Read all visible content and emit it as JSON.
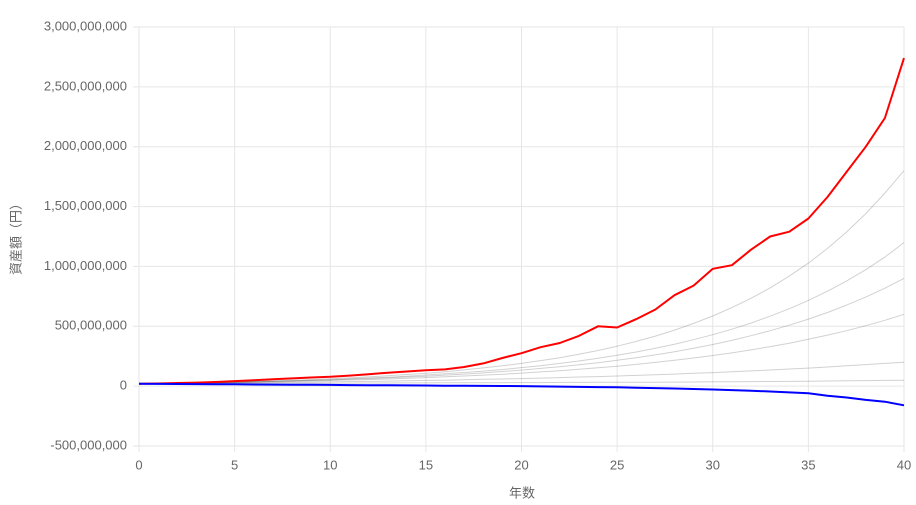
{
  "chart_data": {
    "type": "line",
    "x_label": "年数",
    "y_label": "資産額（円）",
    "x": [
      0,
      1,
      2,
      3,
      4,
      5,
      6,
      7,
      8,
      9,
      10,
      11,
      12,
      13,
      14,
      15,
      16,
      17,
      18,
      19,
      20,
      21,
      22,
      23,
      24,
      25,
      26,
      27,
      28,
      29,
      30,
      31,
      32,
      33,
      34,
      35,
      36,
      37,
      38,
      39,
      40
    ],
    "xlim": [
      0,
      40
    ],
    "xticks": [
      0,
      5,
      10,
      15,
      20,
      25,
      30,
      35,
      40
    ],
    "ylim": [
      -500000000,
      3000000000
    ],
    "yticks": [
      {
        "value": -500000000,
        "label": "-500,000,000"
      },
      0,
      {
        "value": 500000000,
        "label": "500,000,000"
      },
      {
        "value": 1000000000,
        "label": "1,000,000,000"
      },
      {
        "value": 1500000000,
        "label": "1,500,000,000"
      },
      {
        "value": 2000000000,
        "label": "2,000,000,000"
      },
      {
        "value": 2500000000,
        "label": "2,500,000,000"
      },
      {
        "value": 3000000000,
        "label": "3,000,000,000"
      }
    ],
    "grid": true,
    "series": [
      {
        "color": "rgba(0,0,0,0.18)",
        "width": 1,
        "values": [
          20000000,
          21000000,
          22000000,
          24000000,
          25000000,
          27000000,
          28000000,
          30000000,
          32000000,
          34000000,
          36000000,
          38000000,
          40000000,
          42000000,
          45000000,
          48000000,
          50000000,
          53000000,
          57000000,
          60000000,
          63000000,
          67000000,
          71000000,
          76000000,
          80000000,
          85000000,
          90000000,
          95000000,
          101000000,
          107000000,
          113000000,
          120000000,
          127000000,
          135000000,
          143000000,
          151000000,
          160000000,
          170000000,
          180000000,
          190000000,
          200000000
        ]
      },
      {
        "color": "rgba(0,0,0,0.18)",
        "width": 1,
        "values": [
          20000000,
          22000000,
          24000000,
          26000000,
          28000000,
          31000000,
          33000000,
          36000000,
          40000000,
          43000000,
          47000000,
          51000000,
          55000000,
          60000000,
          66000000,
          71000000,
          78000000,
          85000000,
          92000000,
          100000000,
          109000000,
          119000000,
          129000000,
          141000000,
          153000000,
          167000000,
          182000000,
          198000000,
          216000000,
          235000000,
          256000000,
          278000000,
          303000000,
          330000000,
          359000000,
          391000000,
          426000000,
          463000000,
          505000000,
          550000000,
          600000000
        ]
      },
      {
        "color": "rgba(0,0,0,0.18)",
        "width": 1,
        "values": [
          20000000,
          22000000,
          25000000,
          27000000,
          30000000,
          33000000,
          37000000,
          41000000,
          45000000,
          50000000,
          55000000,
          61000000,
          68000000,
          75000000,
          83000000,
          93000000,
          103000000,
          114000000,
          126000000,
          139000000,
          155000000,
          171000000,
          190000000,
          210000000,
          233000000,
          258000000,
          285000000,
          316000000,
          350000000,
          388000000,
          430000000,
          476000000,
          527000000,
          584000000,
          647000000,
          716000000,
          793000000,
          879000000,
          973000000,
          1078000000,
          1200000000
        ]
      },
      {
        "color": "rgba(0,0,0,0.18)",
        "width": 1,
        "values": [
          20000000,
          22000000,
          25000000,
          28000000,
          31000000,
          35000000,
          39000000,
          44000000,
          49000000,
          55000000,
          62000000,
          69000000,
          77000000,
          86000000,
          97000000,
          108000000,
          121000000,
          136000000,
          152000000,
          170000000,
          190000000,
          213000000,
          238000000,
          267000000,
          298000000,
          334000000,
          374000000,
          418000000,
          468000000,
          524000000,
          586000000,
          656000000,
          734000000,
          821000000,
          919000000,
          1028000000,
          1151000000,
          1288000000,
          1441000000,
          1613000000,
          1800000000
        ]
      },
      {
        "color": "rgba(0,0,0,0.18)",
        "width": 1,
        "values": [
          20000000,
          20000000,
          21000000,
          21000000,
          22000000,
          22000000,
          23000000,
          23000000,
          24000000,
          24000000,
          25000000,
          25000000,
          26000000,
          26000000,
          27000000,
          27000000,
          28000000,
          28000000,
          29000000,
          29000000,
          30000000,
          30000000,
          31000000,
          31000000,
          32000000,
          32000000,
          33000000,
          33000000,
          34000000,
          35000000,
          36000000,
          37000000,
          38000000,
          39000000,
          40000000,
          41000000,
          43000000,
          45000000,
          46000000,
          48000000,
          50000000
        ]
      },
      {
        "color": "rgba(0,0,0,0.18)",
        "width": 1,
        "values": [
          20000000,
          22000000,
          24000000,
          27000000,
          29000000,
          32000000,
          35000000,
          39000000,
          43000000,
          47000000,
          52000000,
          57000000,
          63000000,
          69000000,
          76000000,
          83000000,
          92000000,
          101000000,
          111000000,
          122000000,
          134000000,
          148000000,
          162000000,
          179000000,
          196000000,
          216000000,
          238000000,
          261000000,
          287000000,
          316000000,
          348000000,
          382000000,
          421000000,
          463000000,
          509000000,
          560000000,
          615000000,
          677000000,
          744000000,
          818000000,
          900000000
        ]
      },
      {
        "color": "#ff0000",
        "width": 2,
        "values": [
          20000000,
          22000000,
          26000000,
          30000000,
          35000000,
          42000000,
          50000000,
          58000000,
          65000000,
          72000000,
          78000000,
          88000000,
          100000000,
          112000000,
          122000000,
          132000000,
          140000000,
          160000000,
          190000000,
          235000000,
          275000000,
          325000000,
          360000000,
          420000000,
          500000000,
          490000000,
          560000000,
          640000000,
          760000000,
          840000000,
          980000000,
          1010000000,
          1140000000,
          1250000000,
          1290000000,
          1400000000,
          1580000000,
          1790000000,
          2000000000,
          2240000000,
          2740000000
        ]
      },
      {
        "color": "#0000ff",
        "width": 2,
        "values": [
          20000000,
          19000000,
          18000000,
          17000000,
          16000000,
          15000000,
          14000000,
          13000000,
          12000000,
          11000000,
          10000000,
          9000000,
          8000000,
          7000000,
          6000000,
          5000000,
          4000000,
          3000000,
          2000000,
          1000000,
          0,
          -2000000,
          -4000000,
          -6000000,
          -8000000,
          -10000000,
          -13000000,
          -16000000,
          -20000000,
          -24000000,
          -28000000,
          -33000000,
          -38000000,
          -45000000,
          -52000000,
          -60000000,
          -80000000,
          -95000000,
          -115000000,
          -130000000,
          -160000000
        ]
      }
    ]
  }
}
